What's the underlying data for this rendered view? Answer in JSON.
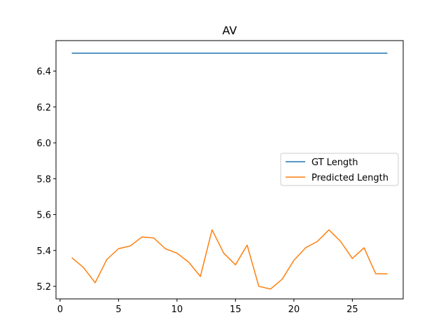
{
  "chart_data": {
    "type": "line",
    "title": "AV",
    "xlabel": "",
    "ylabel": "",
    "xlim": [
      -0.35,
      29.35
    ],
    "ylim": [
      5.13,
      6.57
    ],
    "xticks": [
      0,
      5,
      10,
      15,
      20,
      25
    ],
    "yticks": [
      5.2,
      5.4,
      5.6,
      5.8,
      6.0,
      6.2,
      6.4
    ],
    "grid": false,
    "legend_position": "center-right",
    "x": [
      1,
      2,
      3,
      4,
      5,
      6,
      7,
      8,
      9,
      10,
      11,
      12,
      13,
      14,
      15,
      16,
      17,
      18,
      19,
      20,
      21,
      22,
      23,
      24,
      25,
      26,
      27,
      28
    ],
    "series": [
      {
        "name": "GT Length",
        "color": "#1f77b4",
        "values": [
          6.5,
          6.5,
          6.5,
          6.5,
          6.5,
          6.5,
          6.5,
          6.5,
          6.5,
          6.5,
          6.5,
          6.5,
          6.5,
          6.5,
          6.5,
          6.5,
          6.5,
          6.5,
          6.5,
          6.5,
          6.5,
          6.5,
          6.5,
          6.5,
          6.5,
          6.5,
          6.5,
          6.5
        ]
      },
      {
        "name": "Predicted Length",
        "color": "#ff7f0e",
        "values": [
          5.36,
          5.305,
          5.22,
          5.35,
          5.41,
          5.425,
          5.475,
          5.47,
          5.41,
          5.385,
          5.335,
          5.255,
          5.515,
          5.385,
          5.32,
          5.43,
          5.2,
          5.185,
          5.24,
          5.345,
          5.415,
          5.45,
          5.515,
          5.45,
          5.355,
          5.415,
          5.27,
          5.27
        ]
      }
    ]
  }
}
